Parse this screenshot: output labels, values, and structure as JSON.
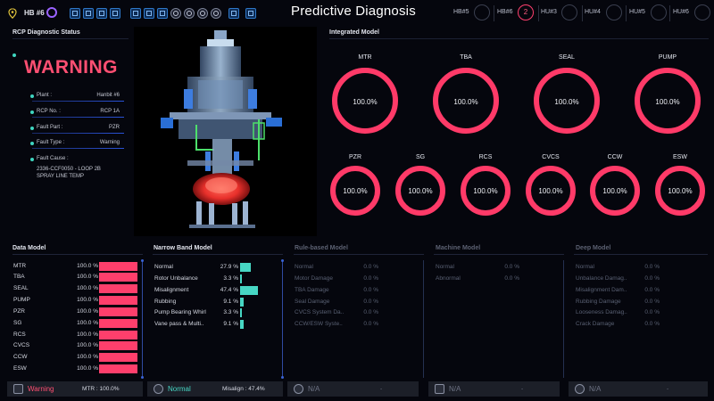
{
  "header": {
    "plant": "HB #6",
    "title": "Predictive Diagnosis",
    "units": [
      {
        "label": "HB#5",
        "count": ""
      },
      {
        "label": "HB#6",
        "count": "2"
      },
      {
        "label": "HU#3",
        "count": ""
      },
      {
        "label": "HU#4",
        "count": ""
      },
      {
        "label": "HU#5",
        "count": ""
      },
      {
        "label": "HU#6",
        "count": ""
      }
    ],
    "toolbar_icons": [
      "grid-icon",
      "tools-icon",
      "report-icon",
      "list-icon",
      "flow-icon",
      "network-icon",
      "target-icon",
      "disc-icon",
      "cross-icon",
      "face-icon",
      "search-icon",
      "camera-icon",
      "window-icon"
    ]
  },
  "rcp_status": {
    "title": "RCP Diagnostic Status",
    "status": "WARNING",
    "fields": [
      {
        "label": "Plant :",
        "value": "Hanbit #6"
      },
      {
        "label": "RCP No. :",
        "value": "RCP 1A"
      },
      {
        "label": "Fault Part :",
        "value": "PZR"
      },
      {
        "label": "Fault Type :",
        "value": "Warning"
      }
    ],
    "cause_label": "Fault Cause :",
    "cause_lines": [
      "2336-CCF0050 - LOOP 2B",
      "SPRAY LINE TEMP"
    ]
  },
  "integrated_model": {
    "title": "Integrated Model",
    "row1": [
      {
        "name": "MTR",
        "value": "100.0%"
      },
      {
        "name": "TBA",
        "value": "100.0%"
      },
      {
        "name": "SEAL",
        "value": "100.0%"
      },
      {
        "name": "PUMP",
        "value": "100.0%"
      }
    ],
    "row2": [
      {
        "name": "PZR",
        "value": "100.0%"
      },
      {
        "name": "SG",
        "value": "100.0%"
      },
      {
        "name": "RCS",
        "value": "100.0%"
      },
      {
        "name": "CVCS",
        "value": "100.0%"
      },
      {
        "name": "CCW",
        "value": "100.0%"
      },
      {
        "name": "ESW",
        "value": "100.0%"
      }
    ],
    "ring_color": "#ff3a68"
  },
  "data_model": {
    "title": "Data Model",
    "rows": [
      {
        "label": "MTR",
        "value": "100.0 %",
        "fraction": 1.0
      },
      {
        "label": "TBA",
        "value": "100.0 %",
        "fraction": 1.0
      },
      {
        "label": "SEAL",
        "value": "100.0 %",
        "fraction": 1.0
      },
      {
        "label": "PUMP",
        "value": "100.0 %",
        "fraction": 1.0
      },
      {
        "label": "PZR",
        "value": "100.0 %",
        "fraction": 1.0
      },
      {
        "label": "SG",
        "value": "100.0 %",
        "fraction": 1.0
      },
      {
        "label": "RCS",
        "value": "100.0 %",
        "fraction": 1.0
      },
      {
        "label": "CVCS",
        "value": "100.0 %",
        "fraction": 1.0
      },
      {
        "label": "CCW",
        "value": "100.0 %",
        "fraction": 1.0
      },
      {
        "label": "ESW",
        "value": "100.0 %",
        "fraction": 1.0
      }
    ],
    "status": "Warning",
    "detail": "MTR : 100.0%"
  },
  "narrow_band": {
    "title": "Narrow Band Model",
    "rows": [
      {
        "label": "Normal",
        "value": "27.9 %",
        "fraction": 0.279
      },
      {
        "label": "Rotor Unbalance",
        "value": "3.3 %",
        "fraction": 0.033
      },
      {
        "label": "Misalignment",
        "value": "47.4 %",
        "fraction": 0.474
      },
      {
        "label": "Rubbing",
        "value": "9.1 %",
        "fraction": 0.091
      },
      {
        "label": "Pump Bearing Whirl",
        "value": "3.3 %",
        "fraction": 0.033
      },
      {
        "label": "Vane pass & Multi..",
        "value": "9.1 %",
        "fraction": 0.091
      }
    ],
    "status": "Normal",
    "detail": "Misalign : 47.4%"
  },
  "rule_based": {
    "title": "Rule-based Model",
    "rows": [
      {
        "label": "Normal",
        "value": "0.0 %"
      },
      {
        "label": "Motor Damage",
        "value": "0.0 %"
      },
      {
        "label": "TBA Damage",
        "value": "0.0 %"
      },
      {
        "label": "Seal Damage",
        "value": "0.0 %"
      },
      {
        "label": "CVCS System Da..",
        "value": "0.0 %"
      },
      {
        "label": "CCW/ESW Syste..",
        "value": "0.0 %"
      }
    ],
    "status": "N/A",
    "detail": "-"
  },
  "machine_model": {
    "title": "Machine Model",
    "rows": [
      {
        "label": "Normal",
        "value": "0.0 %"
      },
      {
        "label": "Abnormal",
        "value": "0.0 %"
      }
    ],
    "status": "N/A",
    "detail": "-"
  },
  "deep_model": {
    "title": "Deep Model",
    "rows": [
      {
        "label": "Normal",
        "value": "0.0 %"
      },
      {
        "label": "Unbalance Damag..",
        "value": "0.0 %"
      },
      {
        "label": "Misalignment Dam..",
        "value": "0.0 %"
      },
      {
        "label": "Rubbing Damage",
        "value": "0.0 %"
      },
      {
        "label": "Looseness Damag..",
        "value": "0.0 %"
      },
      {
        "label": "Crack Damage",
        "value": "0.0 %"
      }
    ],
    "status": "N/A",
    "detail": "-"
  },
  "colors": {
    "warning": "#ff4f72",
    "normal": "#47d7c4",
    "accent_blue": "#2952d8"
  }
}
